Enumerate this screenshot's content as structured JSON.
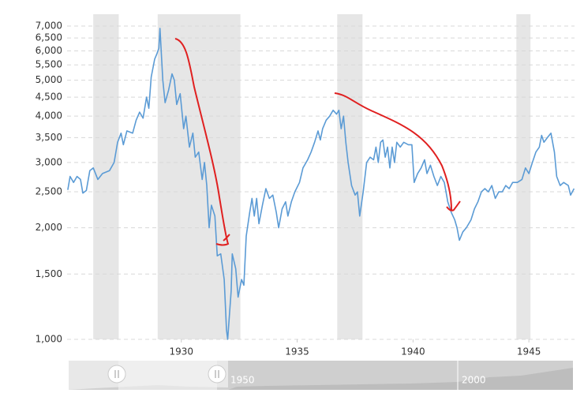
{
  "chart_data": {
    "type": "line",
    "x": [
      1925.1,
      1925.2,
      1925.35,
      1925.5,
      1925.65,
      1925.75,
      1925.9,
      1926.05,
      1926.2,
      1926.4,
      1926.6,
      1926.9,
      1927.1,
      1927.25,
      1927.4,
      1927.5,
      1927.65,
      1927.9,
      1928.05,
      1928.2,
      1928.35,
      1928.5,
      1928.6,
      1928.7,
      1928.85,
      1928.95,
      1929.03,
      1929.08,
      1929.2,
      1929.3,
      1929.45,
      1929.6,
      1929.7,
      1929.8,
      1929.95,
      1930.1,
      1930.2,
      1930.35,
      1930.5,
      1930.6,
      1930.75,
      1930.9,
      1931.0,
      1931.1,
      1931.2,
      1931.3,
      1931.45,
      1931.55,
      1931.7,
      1931.85,
      1931.95,
      1932.0,
      1932.15,
      1932.2,
      1932.35,
      1932.45,
      1932.6,
      1932.7,
      1932.8,
      1932.95,
      1933.05,
      1933.15,
      1933.25,
      1933.35,
      1933.5,
      1933.65,
      1933.8,
      1933.95,
      1934.1,
      1934.2,
      1934.35,
      1934.5,
      1934.6,
      1934.75,
      1934.9,
      1935.1,
      1935.25,
      1935.45,
      1935.6,
      1935.75,
      1935.9,
      1936.0,
      1936.1,
      1936.25,
      1936.4,
      1936.55,
      1936.7,
      1936.8,
      1936.9,
      1937.0,
      1937.1,
      1937.2,
      1937.35,
      1937.5,
      1937.6,
      1937.7,
      1937.85,
      1938.0,
      1938.15,
      1938.3,
      1938.4,
      1938.5,
      1938.6,
      1938.7,
      1938.8,
      1938.9,
      1939.0,
      1939.1,
      1939.2,
      1939.3,
      1939.45,
      1939.6,
      1939.8,
      1939.95,
      1940.05,
      1940.2,
      1940.35,
      1940.5,
      1940.6,
      1940.75,
      1940.9,
      1941.05,
      1941.2,
      1941.35,
      1941.5,
      1941.65,
      1941.8,
      1941.9,
      1942.0,
      1942.15,
      1942.3,
      1942.5,
      1942.65,
      1942.8,
      1942.95,
      1943.1,
      1943.25,
      1943.4,
      1943.55,
      1943.7,
      1943.85,
      1944.0,
      1944.15,
      1944.3,
      1944.5,
      1944.7,
      1944.85,
      1945.0,
      1945.15,
      1945.3,
      1945.45,
      1945.55,
      1945.65,
      1945.8,
      1945.95,
      1946.1,
      1946.2,
      1946.35,
      1946.5,
      1946.7,
      1946.8,
      1946.95
    ],
    "series": [
      {
        "color": "#5b9bd5",
        "values": [
          2530,
          2750,
          2650,
          2750,
          2700,
          2480,
          2520,
          2850,
          2900,
          2700,
          2800,
          2850,
          3000,
          3400,
          3600,
          3350,
          3650,
          3600,
          3900,
          4100,
          3950,
          4500,
          4200,
          5100,
          5700,
          5900,
          6100,
          6900,
          5000,
          4350,
          4700,
          5200,
          5000,
          4300,
          4600,
          3700,
          4000,
          3300,
          3600,
          3100,
          3200,
          2700,
          3000,
          2600,
          2000,
          2300,
          2150,
          1680,
          1700,
          1450,
          1060,
          1000,
          1350,
          1700,
          1550,
          1300,
          1450,
          1400,
          1900,
          2200,
          2400,
          2150,
          2400,
          2050,
          2300,
          2550,
          2400,
          2450,
          2200,
          2000,
          2250,
          2350,
          2150,
          2350,
          2500,
          2650,
          2900,
          3050,
          3200,
          3400,
          3650,
          3450,
          3700,
          3900,
          4000,
          4150,
          4050,
          4150,
          3700,
          4000,
          3400,
          3000,
          2600,
          2450,
          2500,
          2150,
          2500,
          3000,
          3100,
          3050,
          3300,
          3000,
          3400,
          3450,
          3100,
          3300,
          2900,
          3300,
          3000,
          3400,
          3300,
          3400,
          3350,
          3350,
          2650,
          2800,
          2900,
          3050,
          2800,
          2950,
          2750,
          2600,
          2750,
          2650,
          2350,
          2200,
          2100,
          2000,
          1850,
          1950,
          2000,
          2100,
          2250,
          2350,
          2500,
          2550,
          2500,
          2600,
          2400,
          2500,
          2500,
          2600,
          2550,
          2650,
          2650,
          2700,
          2900,
          2800,
          3000,
          3200,
          3300,
          3550,
          3400,
          3500,
          3600,
          3200,
          2750,
          2600,
          2650,
          2600,
          2450,
          2550
        ]
      }
    ],
    "xlim": [
      1925.07,
      1946.97
    ],
    "xticks": [
      1930,
      1935,
      1940,
      1945
    ],
    "ylim": [
      1000,
      7000
    ],
    "log_scale": true,
    "grid": true,
    "yticks": [
      {
        "value": 1000,
        "label": "1,000"
      },
      {
        "value": 1500,
        "label": "1,500"
      },
      {
        "value": 2000,
        "label": "2,000"
      },
      {
        "value": 2500,
        "label": "2,500"
      },
      {
        "value": 3000,
        "label": "3,000"
      },
      {
        "value": 3500,
        "label": "3,500"
      },
      {
        "value": 4000,
        "label": "4,000"
      },
      {
        "value": 4500,
        "label": "4,500"
      },
      {
        "value": 5000,
        "label": "5,000"
      },
      {
        "value": 5500,
        "label": "5,500"
      },
      {
        "value": 6000,
        "label": "6,000"
      },
      {
        "value": 6500,
        "label": "6,500"
      },
      {
        "value": 7000,
        "label": "7,000"
      }
    ],
    "recessions": [
      [
        1926.2,
        1927.3
      ],
      [
        1928.98,
        1932.55
      ],
      [
        1936.73,
        1937.82
      ],
      [
        1944.46,
        1945.07
      ]
    ],
    "recession_color": "#e6e6e6",
    "navigator_labels": [
      "1950",
      "2000"
    ]
  }
}
